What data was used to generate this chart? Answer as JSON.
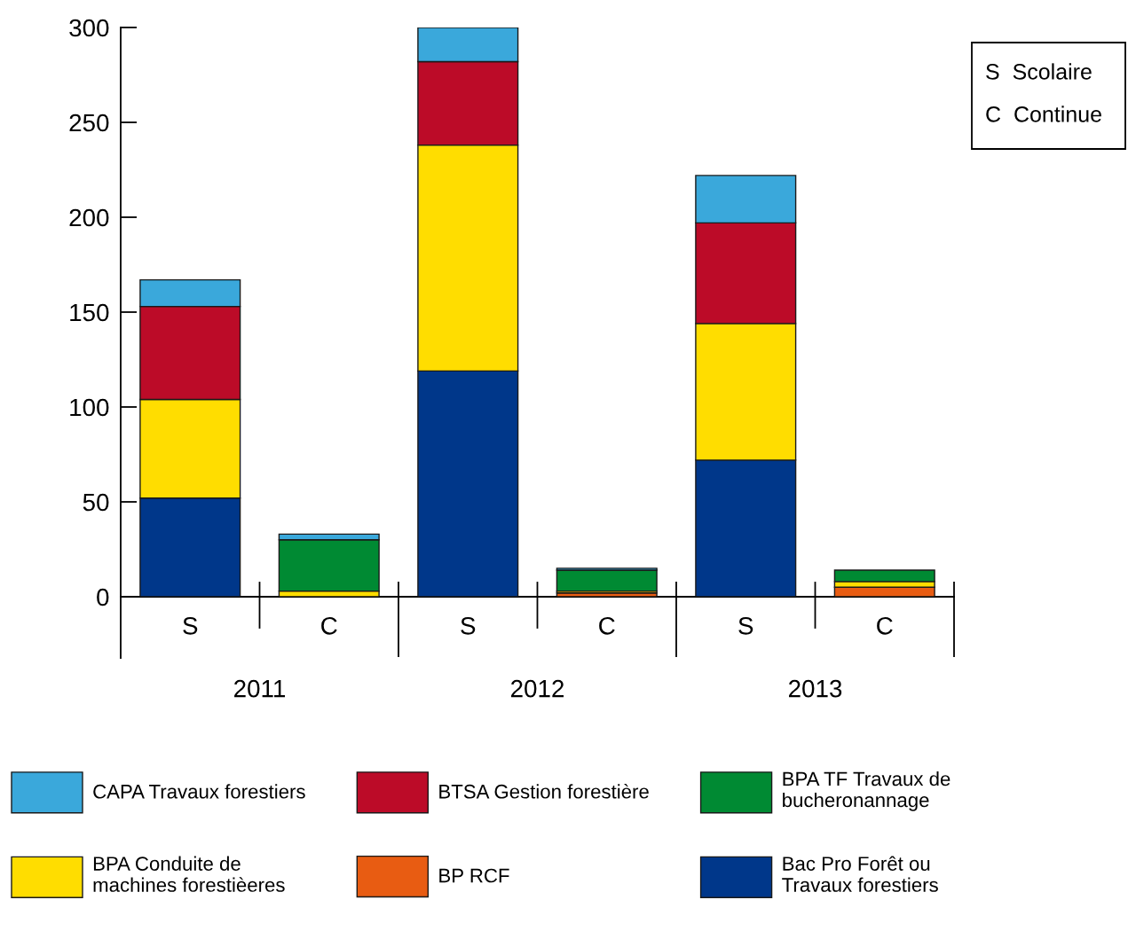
{
  "chart_data": {
    "type": "bar",
    "stacked": true,
    "categories": [
      "S",
      "C",
      "S",
      "C",
      "S",
      "C"
    ],
    "series": [
      {
        "name": "Bac Pro Forêt ou\nTravaux forestiers",
        "color": "#00378a",
        "values": [
          52,
          null,
          119,
          null,
          72,
          null
        ]
      },
      {
        "name": "BP RCF",
        "color": "#e85c12",
        "values": [
          null,
          null,
          null,
          2,
          null,
          5
        ]
      },
      {
        "name": "BPA Conduite de\nmachines forestièeres",
        "color": "#ffdd00",
        "values": [
          52,
          3,
          119,
          1,
          72,
          3
        ]
      },
      {
        "name": "BPA TF Travaux de\nbucheronannage",
        "color": "#008a33",
        "values": [
          null,
          27,
          null,
          11,
          null,
          6
        ]
      },
      {
        "name": "BTSA Gestion forestière",
        "color": "#bc0b28",
        "values": [
          49,
          null,
          44,
          null,
          53,
          null
        ]
      },
      {
        "name": "CAPA Travaux forestiers",
        "color": "#3aa8db",
        "values": [
          14,
          3,
          18,
          1,
          25,
          null
        ]
      }
    ],
    "ylim": [
      0,
      300
    ],
    "yticks": [
      0,
      50,
      100,
      150,
      200,
      250,
      300
    ],
    "legend": "bottom",
    "annotations": [
      "2011",
      "2012",
      "2013",
      "S  Scolaire",
      "C  Continue"
    ]
  }
}
